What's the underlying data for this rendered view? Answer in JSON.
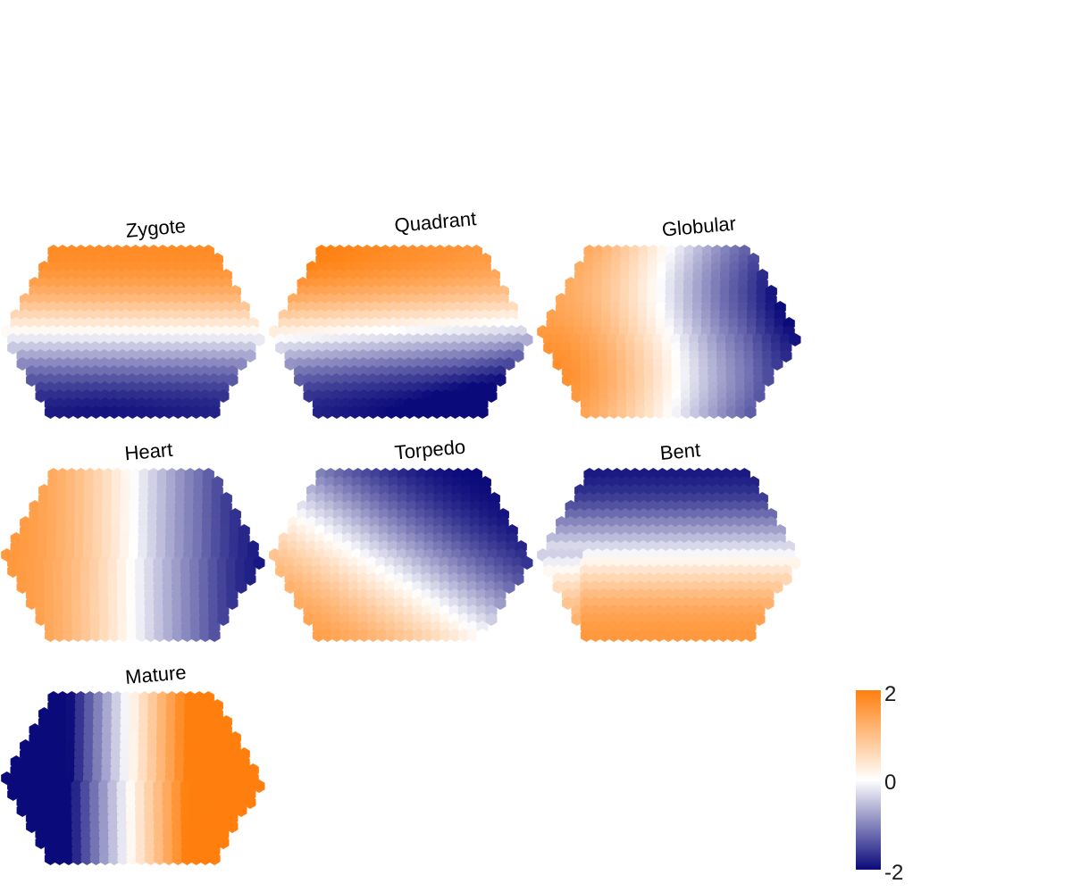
{
  "chart_data": {
    "type": "heatmap",
    "layout": "hexagonal self-organizing map panels",
    "panels": [
      {
        "title": "Zygote",
        "pattern": "top high (orange), bottom low (blue)"
      },
      {
        "title": "Quadrant",
        "pattern": "top-left high, bottom-right low"
      },
      {
        "title": "Globular",
        "pattern": "left high, right low"
      },
      {
        "title": "Heart",
        "pattern": "left high, right low"
      },
      {
        "title": "Torpedo",
        "pattern": "bottom-left high, top-right low"
      },
      {
        "title": "Bent",
        "pattern": "bottom high, top low"
      },
      {
        "title": "Mature",
        "pattern": "left very low, right high"
      }
    ],
    "colorbar": {
      "min": -2,
      "max": 2,
      "ticks": [
        "2",
        "0",
        "-2"
      ],
      "colors": {
        "low": "#0b0a7a",
        "mid": "#ffffff",
        "high": "#ff7f0e"
      }
    }
  }
}
